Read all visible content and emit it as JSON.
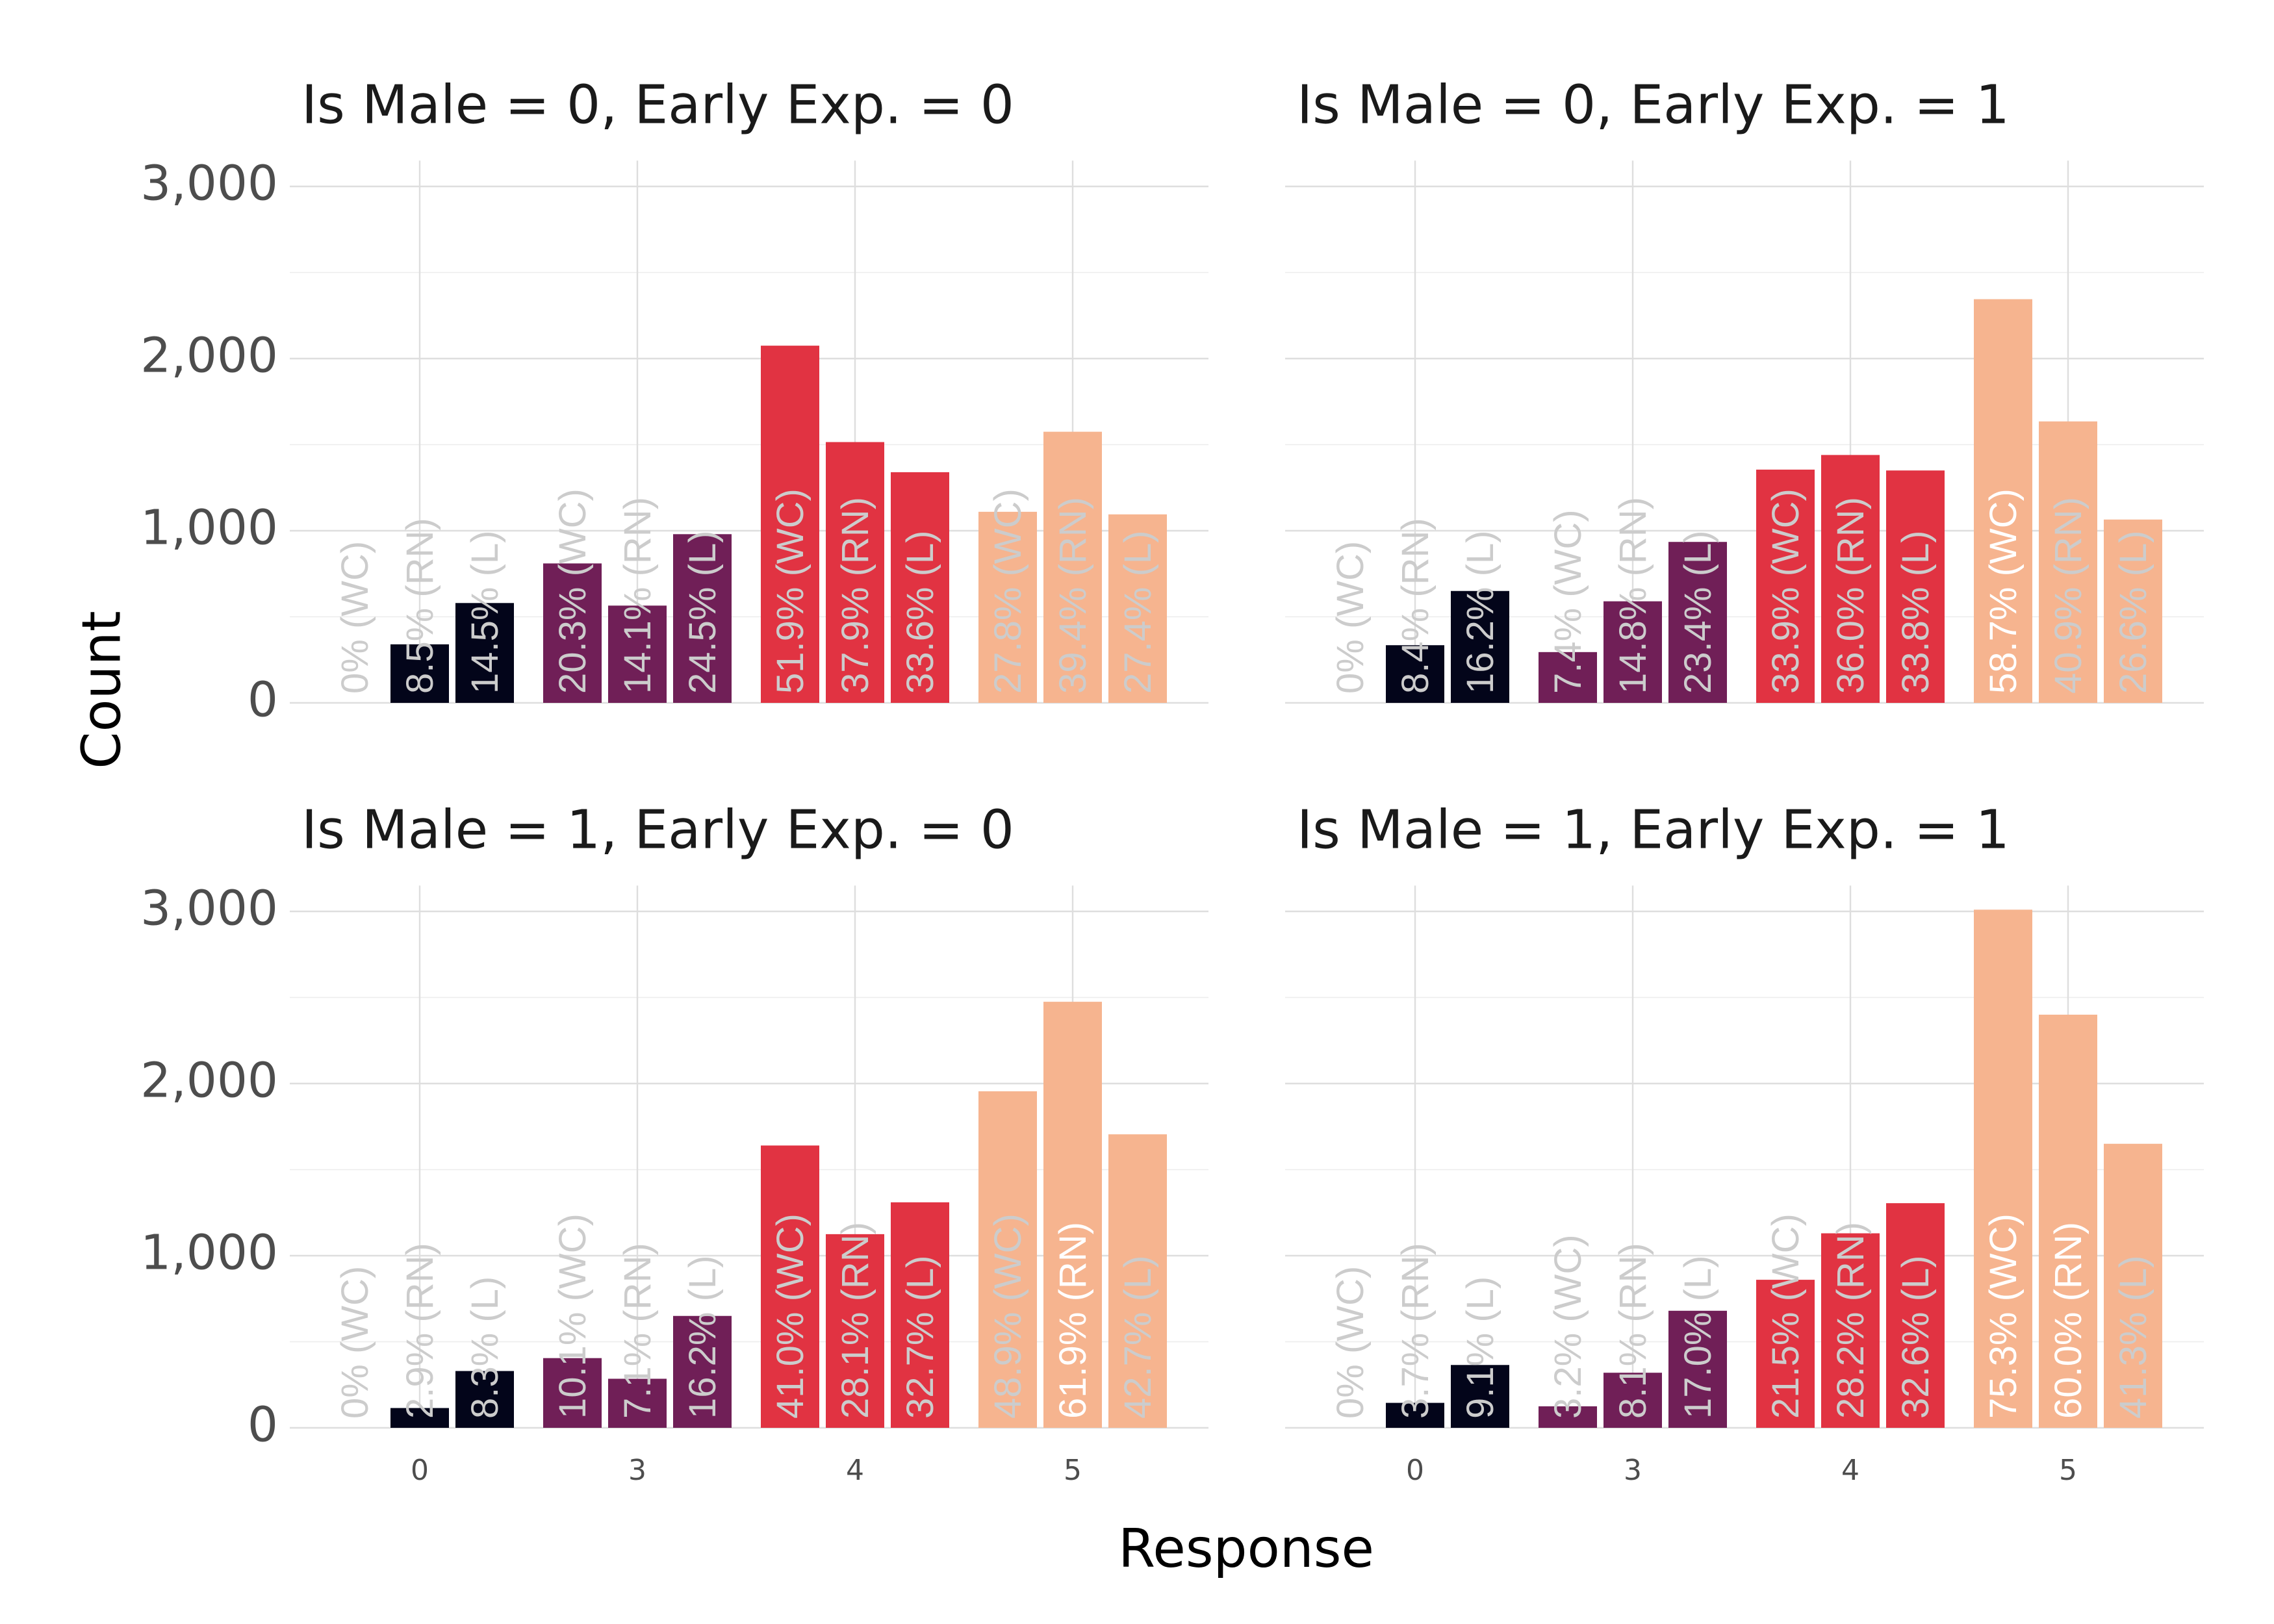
{
  "chart_data": {
    "type": "bar",
    "xlabel": "Response",
    "ylabel": "Count",
    "ylim": [
      0,
      3150
    ],
    "y_ticks": [
      "0",
      "1,000",
      "2,000",
      "3,000"
    ],
    "y_tick_values": [
      0,
      1000,
      2000,
      3000
    ],
    "categories": [
      "0",
      "3",
      "4",
      "5"
    ],
    "bars_per_category": [
      "WC",
      "RN",
      "L"
    ],
    "grid": true,
    "colors": {
      "0": "#03051a",
      "3": "#701f57",
      "4": "#e13342",
      "5": "#f6b48f"
    },
    "label_color_light": "#ffffff",
    "label_color_dim": "#cccccc",
    "panels": [
      {
        "title": "Is Male = 0, Early Exp. = 0",
        "bars": [
          {
            "category": "0",
            "group": "WC",
            "value": 0,
            "label": "0% (WC)"
          },
          {
            "category": "0",
            "group": "RN",
            "value": 340,
            "label": "8.5% (RN)"
          },
          {
            "category": "0",
            "group": "L",
            "value": 580,
            "label": "14.5% (L)"
          },
          {
            "category": "3",
            "group": "WC",
            "value": 810,
            "label": "20.3% (WC)"
          },
          {
            "category": "3",
            "group": "RN",
            "value": 565,
            "label": "14.1% (RN)"
          },
          {
            "category": "3",
            "group": "L",
            "value": 980,
            "label": "24.5% (L)"
          },
          {
            "category": "4",
            "group": "WC",
            "value": 2075,
            "label": "51.9% (WC)"
          },
          {
            "category": "4",
            "group": "RN",
            "value": 1515,
            "label": "37.9% (RN)"
          },
          {
            "category": "4",
            "group": "L",
            "value": 1340,
            "label": "33.6% (L)"
          },
          {
            "category": "5",
            "group": "WC",
            "value": 1110,
            "label": "27.8% (WC)"
          },
          {
            "category": "5",
            "group": "RN",
            "value": 1575,
            "label": "39.4% (RN)"
          },
          {
            "category": "5",
            "group": "L",
            "value": 1095,
            "label": "27.4% (L)"
          }
        ]
      },
      {
        "title": "Is Male = 0, Early Exp. = 1",
        "bars": [
          {
            "category": "0",
            "group": "WC",
            "value": 0,
            "label": "0% (WC)"
          },
          {
            "category": "0",
            "group": "RN",
            "value": 335,
            "label": "8.4% (RN)"
          },
          {
            "category": "0",
            "group": "L",
            "value": 650,
            "label": "16.2% (L)"
          },
          {
            "category": "3",
            "group": "WC",
            "value": 295,
            "label": "7.4% (WC)"
          },
          {
            "category": "3",
            "group": "RN",
            "value": 590,
            "label": "14.8% (RN)"
          },
          {
            "category": "3",
            "group": "L",
            "value": 935,
            "label": "23.4% (L)"
          },
          {
            "category": "4",
            "group": "WC",
            "value": 1355,
            "label": "33.9% (WC)"
          },
          {
            "category": "4",
            "group": "RN",
            "value": 1440,
            "label": "36.0% (RN)"
          },
          {
            "category": "4",
            "group": "L",
            "value": 1350,
            "label": "33.8% (L)"
          },
          {
            "category": "5",
            "group": "WC",
            "value": 2345,
            "label": "58.7% (WC)"
          },
          {
            "category": "5",
            "group": "RN",
            "value": 1635,
            "label": "40.9% (RN)"
          },
          {
            "category": "5",
            "group": "L",
            "value": 1065,
            "label": "26.6% (L)"
          }
        ]
      },
      {
        "title": "Is Male = 1, Early Exp. = 0",
        "bars": [
          {
            "category": "0",
            "group": "WC",
            "value": 0,
            "label": "0% (WC)"
          },
          {
            "category": "0",
            "group": "RN",
            "value": 115,
            "label": "2.9% (RN)"
          },
          {
            "category": "0",
            "group": "L",
            "value": 330,
            "label": "8.3% (L)"
          },
          {
            "category": "3",
            "group": "WC",
            "value": 405,
            "label": "10.1% (WC)"
          },
          {
            "category": "3",
            "group": "RN",
            "value": 285,
            "label": "7.1% (RN)"
          },
          {
            "category": "3",
            "group": "L",
            "value": 650,
            "label": "16.2% (L)"
          },
          {
            "category": "4",
            "group": "WC",
            "value": 1640,
            "label": "41.0% (WC)"
          },
          {
            "category": "4",
            "group": "RN",
            "value": 1125,
            "label": "28.1% (RN)"
          },
          {
            "category": "4",
            "group": "L",
            "value": 1310,
            "label": "32.7% (L)"
          },
          {
            "category": "5",
            "group": "WC",
            "value": 1955,
            "label": "48.9% (WC)"
          },
          {
            "category": "5",
            "group": "RN",
            "value": 2475,
            "label": "61.9% (RN)"
          },
          {
            "category": "5",
            "group": "L",
            "value": 1705,
            "label": "42.7% (L)"
          }
        ]
      },
      {
        "title": "Is Male = 1, Early Exp. = 1",
        "bars": [
          {
            "category": "0",
            "group": "WC",
            "value": 0,
            "label": "0% (WC)"
          },
          {
            "category": "0",
            "group": "RN",
            "value": 145,
            "label": "3.7% (RN)"
          },
          {
            "category": "0",
            "group": "L",
            "value": 365,
            "label": "9.1% (L)"
          },
          {
            "category": "3",
            "group": "WC",
            "value": 125,
            "label": "3.2% (WC)"
          },
          {
            "category": "3",
            "group": "RN",
            "value": 320,
            "label": "8.1% (RN)"
          },
          {
            "category": "3",
            "group": "L",
            "value": 680,
            "label": "17.0% (L)"
          },
          {
            "category": "4",
            "group": "WC",
            "value": 860,
            "label": "21.5% (WC)"
          },
          {
            "category": "4",
            "group": "RN",
            "value": 1130,
            "label": "28.2% (RN)"
          },
          {
            "category": "4",
            "group": "L",
            "value": 1305,
            "label": "32.6% (L)"
          },
          {
            "category": "5",
            "group": "WC",
            "value": 3010,
            "label": "75.3% (WC)"
          },
          {
            "category": "5",
            "group": "RN",
            "value": 2400,
            "label": "60.0% (RN)"
          },
          {
            "category": "5",
            "group": "L",
            "value": 1650,
            "label": "41.3% (L)"
          }
        ]
      }
    ]
  }
}
